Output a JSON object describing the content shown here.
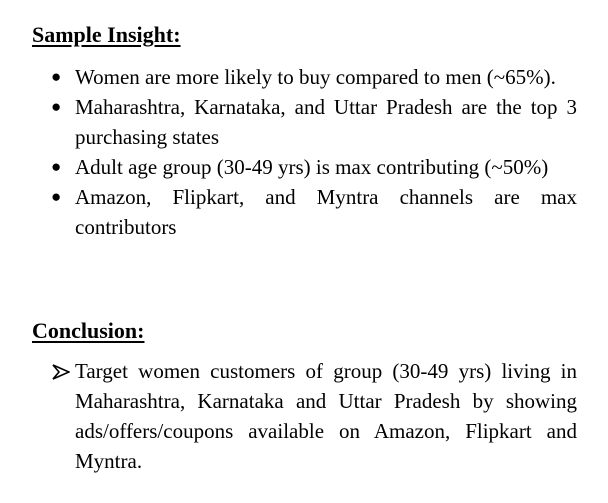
{
  "insight": {
    "heading": "Sample Insight:",
    "items": [
      "Women are more likely to buy compared to men (~65%).",
      "Maharashtra, Karnataka, and Uttar Pradesh are the top 3 purchasing states",
      "Adult age group (30-49 yrs) is max contributing (~50%)",
      "Amazon, Flipkart, and Myntra channels are max contributors"
    ],
    "bullet": "●"
  },
  "conclusion": {
    "heading": "Conclusion:",
    "items": [
      "Target women customers of group (30-49 yrs) living in Maharashtra, Karnataka and Uttar Pradesh by showing ads/offers/coupons available on Amazon, Flipkart and Myntra."
    ],
    "bullet_icon": "arrow-bullet-icon"
  }
}
